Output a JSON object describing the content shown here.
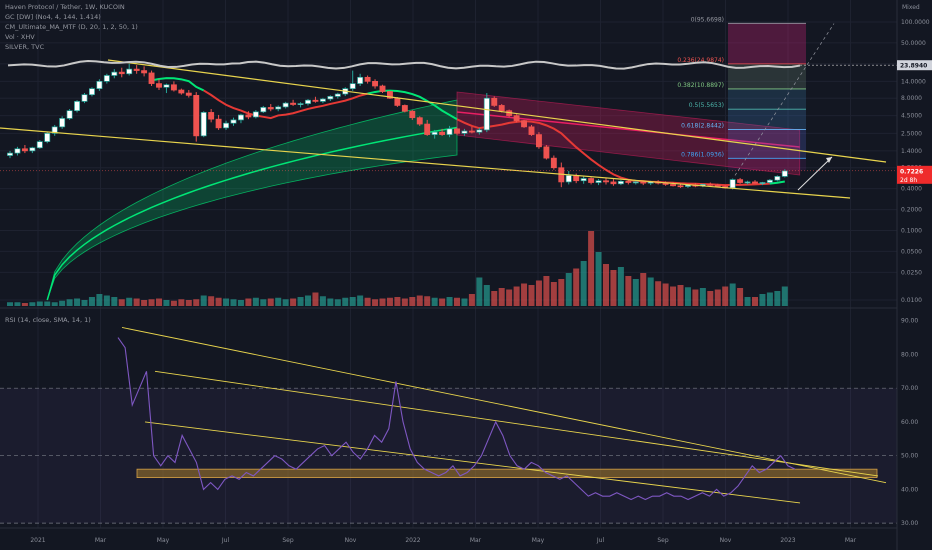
{
  "header": {
    "title": "Haven Protocol / Tether, 1W, KUCOIN",
    "ind1": "GC [DW] (No4, 4, 144, 1.414)",
    "ind2": "CM_Ultimate_MA_MTF (D, 20, 1, 2, 50, 1)",
    "ind3": "Vol · XHV",
    "ind4": "SILVER, TVC"
  },
  "scale_mode": "Mixed",
  "rsi_header": "RSI (14, close, SMA, 14, 1)",
  "price_badge": {
    "value": "0.7226",
    "countdown": "2d 8h"
  },
  "silver_badge": "23.8940",
  "colors": {
    "bg": "#131722",
    "up": "#26a69a",
    "down": "#ef5350",
    "yellow": "#e8d44d",
    "green_band": "#00e676",
    "red_band": "#e91e63",
    "rsi": "#7e57c2",
    "silver": "#c8c8c8"
  },
  "chart_data": [
    {
      "type": "candlestick",
      "title": "Haven Protocol / Tether, 1W, KUCOIN",
      "y_scale": "log",
      "y_ticks": [
        "100.0000",
        "50.0000",
        "25.0000",
        "14.0000",
        "8.0000",
        "4.5000",
        "2.5000",
        "1.4000",
        "0.8000",
        "0.4000",
        "0.2000",
        "0.1000",
        "0.0500",
        "0.0250",
        "0.0100"
      ],
      "x_ticks": [
        "2021",
        "Mar",
        "May",
        "Jul",
        "Sep",
        "Nov",
        "2022",
        "Mar",
        "May",
        "Jul",
        "Sep",
        "Nov",
        "2023",
        "Mar"
      ],
      "candles_ohlc": [
        [
          1.2,
          1.4,
          1.1,
          1.3
        ],
        [
          1.3,
          1.6,
          1.2,
          1.5
        ],
        [
          1.5,
          1.7,
          1.3,
          1.4
        ],
        [
          1.4,
          1.6,
          1.3,
          1.55
        ],
        [
          1.55,
          2.0,
          1.5,
          1.9
        ],
        [
          1.9,
          2.6,
          1.8,
          2.5
        ],
        [
          2.5,
          3.3,
          2.3,
          3.1
        ],
        [
          3.1,
          4.4,
          2.9,
          4.1
        ],
        [
          4.1,
          5.6,
          3.9,
          5.3
        ],
        [
          5.3,
          7.5,
          5.0,
          7.2
        ],
        [
          7.2,
          9.5,
          6.8,
          9.0
        ],
        [
          9.0,
          11.5,
          8.5,
          11.0
        ],
        [
          11.0,
          15,
          10.2,
          14.0
        ],
        [
          14.0,
          18,
          13,
          17.0
        ],
        [
          17,
          21,
          15.5,
          19.0
        ],
        [
          19,
          22,
          16,
          18.0
        ],
        [
          18,
          25,
          17,
          21.0
        ],
        [
          21,
          24,
          18,
          20.0
        ],
        [
          20,
          23,
          16.5,
          18.5
        ],
        [
          18.5,
          20,
          12,
          13.0
        ],
        [
          13,
          15,
          10.5,
          11.5
        ],
        [
          11.5,
          13,
          9.5,
          12.5
        ],
        [
          12.5,
          14,
          10,
          10.5
        ],
        [
          10.5,
          11,
          9,
          9.5
        ],
        [
          9.5,
          10.5,
          8.2,
          8.8
        ],
        [
          8.8,
          9.8,
          1.9,
          2.3
        ],
        [
          2.3,
          5.2,
          2.2,
          5.0
        ],
        [
          5.0,
          5.6,
          3.6,
          4.0
        ],
        [
          4.0,
          4.6,
          2.8,
          3.0
        ],
        [
          3.0,
          3.8,
          2.8,
          3.5
        ],
        [
          3.5,
          4.2,
          3.2,
          3.9
        ],
        [
          3.9,
          4.8,
          3.5,
          4.6
        ],
        [
          4.6,
          5.2,
          4.0,
          4.3
        ],
        [
          4.3,
          5.4,
          4.1,
          5.1
        ],
        [
          5.1,
          6.2,
          4.9,
          5.9
        ],
        [
          5.9,
          6.6,
          5.2,
          5.6
        ],
        [
          5.6,
          6.3,
          5.2,
          6.0
        ],
        [
          6.0,
          7.1,
          5.7,
          6.8
        ],
        [
          6.8,
          7.6,
          6.2,
          6.5
        ],
        [
          6.5,
          7.0,
          5.9,
          6.7
        ],
        [
          6.7,
          7.8,
          6.3,
          7.5
        ],
        [
          7.5,
          8.4,
          6.9,
          7.2
        ],
        [
          7.2,
          8.1,
          6.8,
          7.8
        ],
        [
          7.8,
          8.8,
          7.3,
          8.5
        ],
        [
          8.5,
          9.6,
          7.9,
          9.2
        ],
        [
          9.2,
          11.5,
          8.6,
          11.0
        ],
        [
          11,
          20,
          10.2,
          13.0
        ],
        [
          13,
          18,
          12.0,
          16.0
        ],
        [
          16,
          17,
          13.0,
          14.0
        ],
        [
          14,
          15,
          11.0,
          12.0
        ],
        [
          12,
          12.5,
          9.5,
          10.0
        ],
        [
          10,
          10.2,
          7.8,
          8.0
        ],
        [
          8.0,
          8.3,
          6.0,
          6.3
        ],
        [
          6.3,
          6.5,
          5.0,
          5.2
        ],
        [
          5.2,
          5.4,
          3.9,
          4.2
        ],
        [
          4.2,
          4.4,
          3.2,
          3.4
        ],
        [
          3.4,
          3.9,
          2.3,
          2.4
        ],
        [
          2.4,
          2.8,
          2.1,
          2.6
        ],
        [
          2.6,
          2.9,
          2.3,
          2.4
        ],
        [
          2.4,
          3.2,
          2.2,
          2.9
        ],
        [
          2.9,
          3.0,
          2.4,
          2.5
        ],
        [
          2.5,
          2.9,
          2.3,
          2.7
        ],
        [
          2.7,
          3.1,
          2.5,
          2.6
        ],
        [
          2.6,
          3.0,
          2.4,
          2.8
        ],
        [
          2.8,
          9.5,
          2.6,
          8.0
        ],
        [
          8.0,
          8.5,
          6.0,
          6.3
        ],
        [
          6.3,
          6.6,
          5.0,
          5.3
        ],
        [
          5.3,
          5.5,
          4.3,
          4.5
        ],
        [
          4.5,
          4.7,
          3.6,
          3.8
        ],
        [
          3.8,
          3.9,
          3.0,
          3.1
        ],
        [
          3.1,
          3.3,
          2.3,
          2.4
        ],
        [
          2.4,
          2.6,
          1.5,
          1.6
        ],
        [
          1.6,
          1.7,
          1.05,
          1.1
        ],
        [
          1.1,
          1.2,
          0.75,
          0.8
        ],
        [
          0.8,
          0.95,
          0.42,
          0.5
        ],
        [
          0.5,
          0.72,
          0.46,
          0.62
        ],
        [
          0.62,
          0.66,
          0.48,
          0.52
        ],
        [
          0.52,
          0.6,
          0.47,
          0.56
        ],
        [
          0.56,
          0.58,
          0.46,
          0.49
        ],
        [
          0.49,
          0.55,
          0.45,
          0.52
        ],
        [
          0.52,
          0.56,
          0.46,
          0.5
        ],
        [
          0.5,
          0.55,
          0.44,
          0.47
        ],
        [
          0.47,
          0.53,
          0.45,
          0.51
        ],
        [
          0.51,
          0.54,
          0.46,
          0.49
        ],
        [
          0.49,
          0.53,
          0.46,
          0.5
        ],
        [
          0.5,
          0.52,
          0.45,
          0.48
        ],
        [
          0.48,
          0.52,
          0.45,
          0.5
        ],
        [
          0.5,
          0.53,
          0.46,
          0.48
        ],
        [
          0.48,
          0.51,
          0.44,
          0.46
        ],
        [
          0.46,
          0.5,
          0.43,
          0.44
        ],
        [
          0.44,
          0.47,
          0.41,
          0.43
        ],
        [
          0.43,
          0.46,
          0.41,
          0.45
        ],
        [
          0.45,
          0.48,
          0.42,
          0.44
        ],
        [
          0.44,
          0.47,
          0.42,
          0.46
        ],
        [
          0.46,
          0.49,
          0.43,
          0.45
        ],
        [
          0.45,
          0.47,
          0.42,
          0.43
        ],
        [
          0.43,
          0.45,
          0.4,
          0.41
        ],
        [
          0.41,
          0.56,
          0.39,
          0.54
        ],
        [
          0.54,
          0.57,
          0.47,
          0.49
        ],
        [
          0.49,
          0.52,
          0.46,
          0.5
        ],
        [
          0.5,
          0.53,
          0.47,
          0.48
        ],
        [
          0.48,
          0.5,
          0.45,
          0.49
        ],
        [
          0.49,
          0.55,
          0.47,
          0.53
        ],
        [
          0.53,
          0.62,
          0.51,
          0.6
        ],
        [
          0.6,
          0.76,
          0.58,
          0.72
        ]
      ],
      "volume_relative": [
        5,
        5,
        4,
        5,
        6,
        6,
        5,
        7,
        9,
        10,
        8,
        12,
        16,
        14,
        12,
        9,
        11,
        10,
        8,
        9,
        10,
        8,
        7,
        9,
        8,
        9,
        14,
        13,
        11,
        10,
        9,
        8,
        10,
        11,
        9,
        10,
        11,
        9,
        10,
        12,
        14,
        18,
        13,
        10,
        9,
        11,
        12,
        14,
        11,
        9,
        10,
        11,
        12,
        10,
        12,
        14,
        13,
        11,
        10,
        12,
        11,
        10,
        16,
        38,
        28,
        20,
        24,
        22,
        26,
        30,
        28,
        34,
        40,
        32,
        36,
        44,
        50,
        60,
        100,
        72,
        56,
        48,
        52,
        40,
        36,
        44,
        38,
        33,
        30,
        26,
        28,
        25,
        22,
        24,
        20,
        22,
        26,
        30,
        24,
        12,
        12,
        16,
        18,
        20,
        26,
        30
      ],
      "silver_level": 23.894,
      "fib_levels": [
        {
          "ratio": "0",
          "value": "95.6698",
          "label": "0(95.6698)"
        },
        {
          "ratio": "0.236",
          "value": "24.9874",
          "label": "0.236(24.9874)"
        },
        {
          "ratio": "0.382",
          "value": "10.8897",
          "label": "0.382(10.8897)"
        },
        {
          "ratio": "0.5",
          "value": "5.5653",
          "label": "0.5(5.5653)"
        },
        {
          "ratio": "0.618",
          "value": "2.8442",
          "label": "0.618(2.8442)"
        },
        {
          "ratio": "0.786",
          "value": "1.0936",
          "label": "0.786(1.0936)"
        }
      ],
      "last_price": 0.7226
    },
    {
      "type": "line",
      "title": "RSI (14, close, SMA, 14, 1)",
      "y_ticks": [
        "90.00",
        "80.00",
        "70.00",
        "60.00",
        "50.00",
        "40.00",
        "30.00"
      ],
      "ylim": [
        25,
        92
      ],
      "bands": [
        70,
        50,
        30
      ],
      "rsi_values": [
        85,
        82,
        65,
        70,
        75,
        50,
        47,
        50,
        48,
        56,
        52,
        48,
        40,
        42,
        40,
        43,
        44,
        43,
        45,
        44,
        46,
        48,
        50,
        49,
        47,
        46,
        48,
        50,
        52,
        53,
        50,
        52,
        54,
        51,
        49,
        52,
        56,
        54,
        58,
        72,
        60,
        52,
        48,
        46,
        45,
        44,
        45,
        47,
        44,
        45,
        47,
        50,
        55,
        60,
        56,
        50,
        47,
        46,
        48,
        47,
        45,
        44,
        43,
        44,
        42,
        40,
        38,
        39,
        38,
        38,
        39,
        38,
        37,
        38,
        37,
        38,
        38,
        39,
        38,
        38,
        37,
        38,
        39,
        38,
        40,
        38,
        39,
        41,
        44,
        47,
        45,
        46,
        48,
        50,
        47,
        46
      ]
    }
  ]
}
